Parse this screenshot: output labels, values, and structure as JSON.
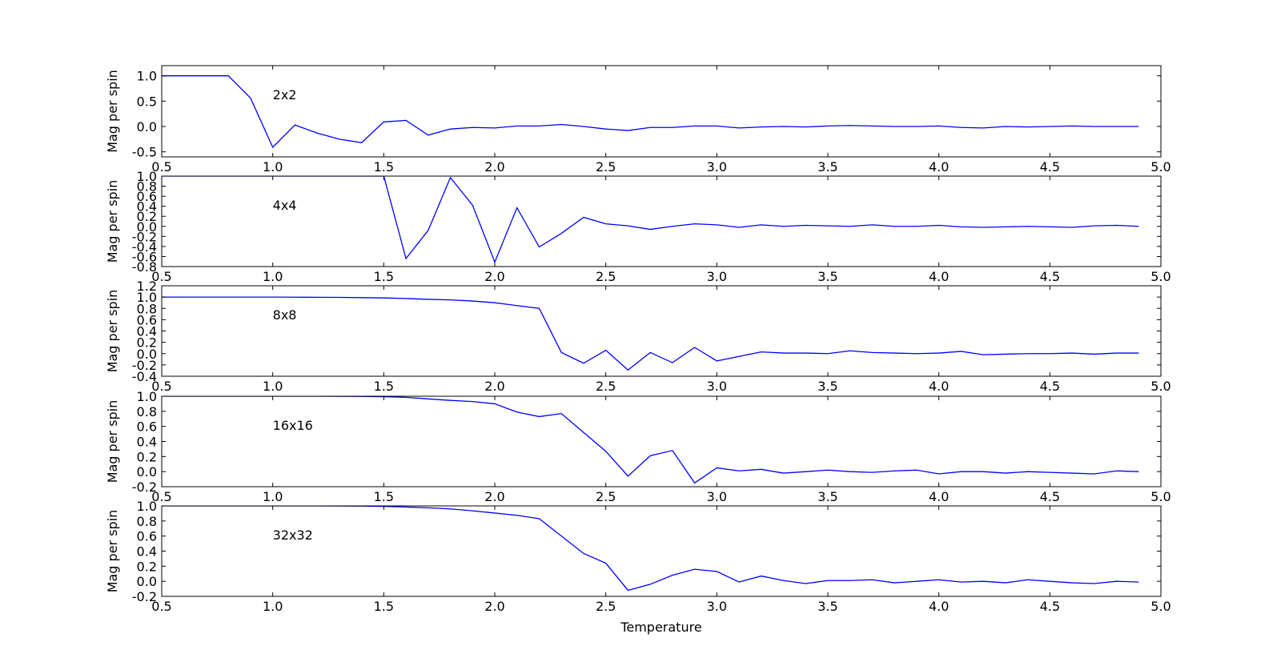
{
  "chart_data": [
    {
      "type": "line",
      "annotation": "2x2",
      "ylabel": "Mag per spin",
      "xlabel": "",
      "xlim": [
        0.5,
        5.0
      ],
      "ylim": [
        -0.6,
        1.2
      ],
      "xticks": [
        "0.5",
        "1.0",
        "1.5",
        "2.0",
        "2.5",
        "3.0",
        "3.5",
        "4.0",
        "4.5",
        "5.0"
      ],
      "yticks": [
        "-0.5",
        "0.0",
        "0.5",
        "1.0"
      ],
      "line_color": "#0000ff",
      "x": [
        0.5,
        0.6,
        0.7,
        0.8,
        0.9,
        1.0,
        1.1,
        1.2,
        1.3,
        1.4,
        1.5,
        1.6,
        1.7,
        1.8,
        1.9,
        2.0,
        2.1,
        2.2,
        2.3,
        2.4,
        2.5,
        2.6,
        2.7,
        2.8,
        2.9,
        3.0,
        3.1,
        3.2,
        3.3,
        3.4,
        3.5,
        3.6,
        3.7,
        3.8,
        3.9,
        4.0,
        4.1,
        4.2,
        4.3,
        4.4,
        4.5,
        4.6,
        4.7,
        4.8,
        4.9
      ],
      "y": [
        1.0,
        1.0,
        1.0,
        1.0,
        0.56,
        -0.41,
        0.03,
        -0.13,
        -0.25,
        -0.32,
        0.09,
        0.12,
        -0.17,
        -0.05,
        -0.02,
        -0.03,
        0.01,
        0.01,
        0.04,
        0.0,
        -0.05,
        -0.08,
        -0.02,
        -0.02,
        0.01,
        0.01,
        -0.03,
        -0.01,
        0.0,
        -0.01,
        0.01,
        0.02,
        0.01,
        0.0,
        0.0,
        0.01,
        -0.02,
        -0.03,
        0.0,
        -0.01,
        0.0,
        0.01,
        0.0,
        0.0,
        0.0
      ]
    },
    {
      "type": "line",
      "annotation": "4x4",
      "ylabel": "Mag per spin",
      "xlabel": "",
      "xlim": [
        0.5,
        5.0
      ],
      "ylim": [
        -0.8,
        1.0
      ],
      "xticks": [
        "0.5",
        "1.0",
        "1.5",
        "2.0",
        "2.5",
        "3.0",
        "3.5",
        "4.0",
        "4.5",
        "5.0"
      ],
      "yticks": [
        "-0.8",
        "-0.6",
        "-0.4",
        "-0.2",
        "0.0",
        "0.2",
        "0.4",
        "0.6",
        "0.8",
        "1.0"
      ],
      "line_color": "#0000ff",
      "x": [
        0.5,
        0.6,
        0.7,
        0.8,
        0.9,
        1.0,
        1.1,
        1.2,
        1.3,
        1.4,
        1.5,
        1.6,
        1.7,
        1.8,
        1.9,
        2.0,
        2.1,
        2.2,
        2.3,
        2.4,
        2.5,
        2.6,
        2.7,
        2.8,
        2.9,
        3.0,
        3.1,
        3.2,
        3.3,
        3.4,
        3.5,
        3.6,
        3.7,
        3.8,
        3.9,
        4.0,
        4.1,
        4.2,
        4.3,
        4.4,
        4.5,
        4.6,
        4.7,
        4.8,
        4.9
      ],
      "y": [
        1.0,
        1.0,
        1.0,
        1.0,
        1.0,
        1.0,
        1.0,
        1.0,
        1.0,
        1.0,
        1.0,
        -0.64,
        -0.08,
        0.97,
        0.42,
        -0.71,
        0.37,
        -0.41,
        -0.14,
        0.18,
        0.05,
        0.01,
        -0.06,
        0.0,
        0.05,
        0.03,
        -0.02,
        0.03,
        0.0,
        0.02,
        0.01,
        0.0,
        0.03,
        0.0,
        0.0,
        0.02,
        -0.01,
        -0.02,
        -0.01,
        0.0,
        -0.01,
        -0.02,
        0.01,
        0.02,
        0.0
      ]
    },
    {
      "type": "line",
      "annotation": "8x8",
      "ylabel": "Mag per spin",
      "xlabel": "",
      "xlim": [
        0.5,
        5.0
      ],
      "ylim": [
        -0.4,
        1.2
      ],
      "xticks": [
        "0.5",
        "1.0",
        "1.5",
        "2.0",
        "2.5",
        "3.0",
        "3.5",
        "4.0",
        "4.5",
        "5.0"
      ],
      "yticks": [
        "-0.4",
        "-0.2",
        "0.0",
        "0.2",
        "0.4",
        "0.6",
        "0.8",
        "1.0",
        "1.2"
      ],
      "line_color": "#0000ff",
      "x": [
        0.5,
        0.6,
        0.7,
        0.8,
        0.9,
        1.0,
        1.1,
        1.2,
        1.3,
        1.4,
        1.5,
        1.6,
        1.7,
        1.8,
        1.9,
        2.0,
        2.1,
        2.2,
        2.3,
        2.4,
        2.5,
        2.6,
        2.7,
        2.8,
        2.9,
        3.0,
        3.1,
        3.2,
        3.3,
        3.4,
        3.5,
        3.6,
        3.7,
        3.8,
        3.9,
        4.0,
        4.1,
        4.2,
        4.3,
        4.4,
        4.5,
        4.6,
        4.7,
        4.8,
        4.9
      ],
      "y": [
        1.0,
        1.0,
        1.0,
        1.0,
        1.0,
        1.0,
        0.998,
        0.997,
        0.995,
        0.99,
        0.985,
        0.975,
        0.96,
        0.95,
        0.93,
        0.9,
        0.85,
        0.8,
        0.02,
        -0.17,
        0.06,
        -0.29,
        0.02,
        -0.16,
        0.11,
        -0.13,
        -0.05,
        0.03,
        0.01,
        0.01,
        0.0,
        0.05,
        0.02,
        0.01,
        0.0,
        0.01,
        0.04,
        -0.02,
        -0.01,
        0.0,
        0.0,
        0.01,
        -0.01,
        0.01,
        0.01
      ]
    },
    {
      "type": "line",
      "annotation": "16x16",
      "ylabel": "Mag per spin",
      "xlabel": "",
      "xlim": [
        0.5,
        5.0
      ],
      "ylim": [
        -0.2,
        1.0
      ],
      "xticks": [
        "0.5",
        "1.0",
        "1.5",
        "2.0",
        "2.5",
        "3.0",
        "3.5",
        "4.0",
        "4.5",
        "5.0"
      ],
      "yticks": [
        "-0.2",
        "0.0",
        "0.2",
        "0.4",
        "0.6",
        "0.8",
        "1.0"
      ],
      "line_color": "#0000ff",
      "x": [
        0.5,
        0.6,
        0.7,
        0.8,
        0.9,
        1.0,
        1.1,
        1.2,
        1.3,
        1.4,
        1.5,
        1.6,
        1.7,
        1.8,
        1.9,
        2.0,
        2.1,
        2.2,
        2.3,
        2.4,
        2.5,
        2.6,
        2.7,
        2.8,
        2.9,
        3.0,
        3.1,
        3.2,
        3.3,
        3.4,
        3.5,
        3.6,
        3.7,
        3.8,
        3.9,
        4.0,
        4.1,
        4.2,
        4.3,
        4.4,
        4.5,
        4.6,
        4.7,
        4.8,
        4.9
      ],
      "y": [
        1.0,
        1.0,
        1.0,
        1.0,
        1.0,
        1.0,
        1.0,
        1.0,
        0.999,
        0.997,
        0.993,
        0.985,
        0.965,
        0.945,
        0.93,
        0.9,
        0.79,
        0.73,
        0.77,
        0.52,
        0.27,
        -0.06,
        0.21,
        0.28,
        -0.15,
        0.05,
        0.01,
        0.03,
        -0.02,
        0.0,
        0.02,
        0.0,
        -0.01,
        0.01,
        0.02,
        -0.03,
        0.0,
        0.0,
        -0.02,
        0.0,
        -0.01,
        -0.02,
        -0.03,
        0.01,
        0.0
      ]
    },
    {
      "type": "line",
      "annotation": "32x32",
      "ylabel": "Mag per spin",
      "xlabel": "Temperature",
      "xlim": [
        0.5,
        5.0
      ],
      "ylim": [
        -0.2,
        1.0
      ],
      "xticks": [
        "0.5",
        "1.0",
        "1.5",
        "2.0",
        "2.5",
        "3.0",
        "3.5",
        "4.0",
        "4.5",
        "5.0"
      ],
      "yticks": [
        "-0.2",
        "0.0",
        "0.2",
        "0.4",
        "0.6",
        "0.8",
        "1.0"
      ],
      "line_color": "#0000ff",
      "x": [
        0.5,
        0.6,
        0.7,
        0.8,
        0.9,
        1.0,
        1.1,
        1.2,
        1.3,
        1.4,
        1.5,
        1.6,
        1.7,
        1.8,
        1.9,
        2.0,
        2.1,
        2.2,
        2.3,
        2.4,
        2.5,
        2.6,
        2.7,
        2.8,
        2.9,
        3.0,
        3.1,
        3.2,
        3.3,
        3.4,
        3.5,
        3.6,
        3.7,
        3.8,
        3.9,
        4.0,
        4.1,
        4.2,
        4.3,
        4.4,
        4.5,
        4.6,
        4.7,
        4.8,
        4.9
      ],
      "y": [
        1.0,
        1.0,
        1.0,
        1.0,
        1.0,
        1.0,
        1.0,
        1.0,
        0.999,
        0.997,
        0.993,
        0.985,
        0.975,
        0.96,
        0.935,
        0.905,
        0.875,
        0.83,
        0.6,
        0.37,
        0.24,
        -0.12,
        -0.04,
        0.08,
        0.16,
        0.13,
        -0.01,
        0.07,
        0.01,
        -0.03,
        0.01,
        0.01,
        0.02,
        -0.02,
        0.0,
        0.02,
        -0.01,
        0.0,
        -0.02,
        0.02,
        0.0,
        -0.02,
        -0.03,
        0.0,
        -0.01
      ]
    }
  ]
}
